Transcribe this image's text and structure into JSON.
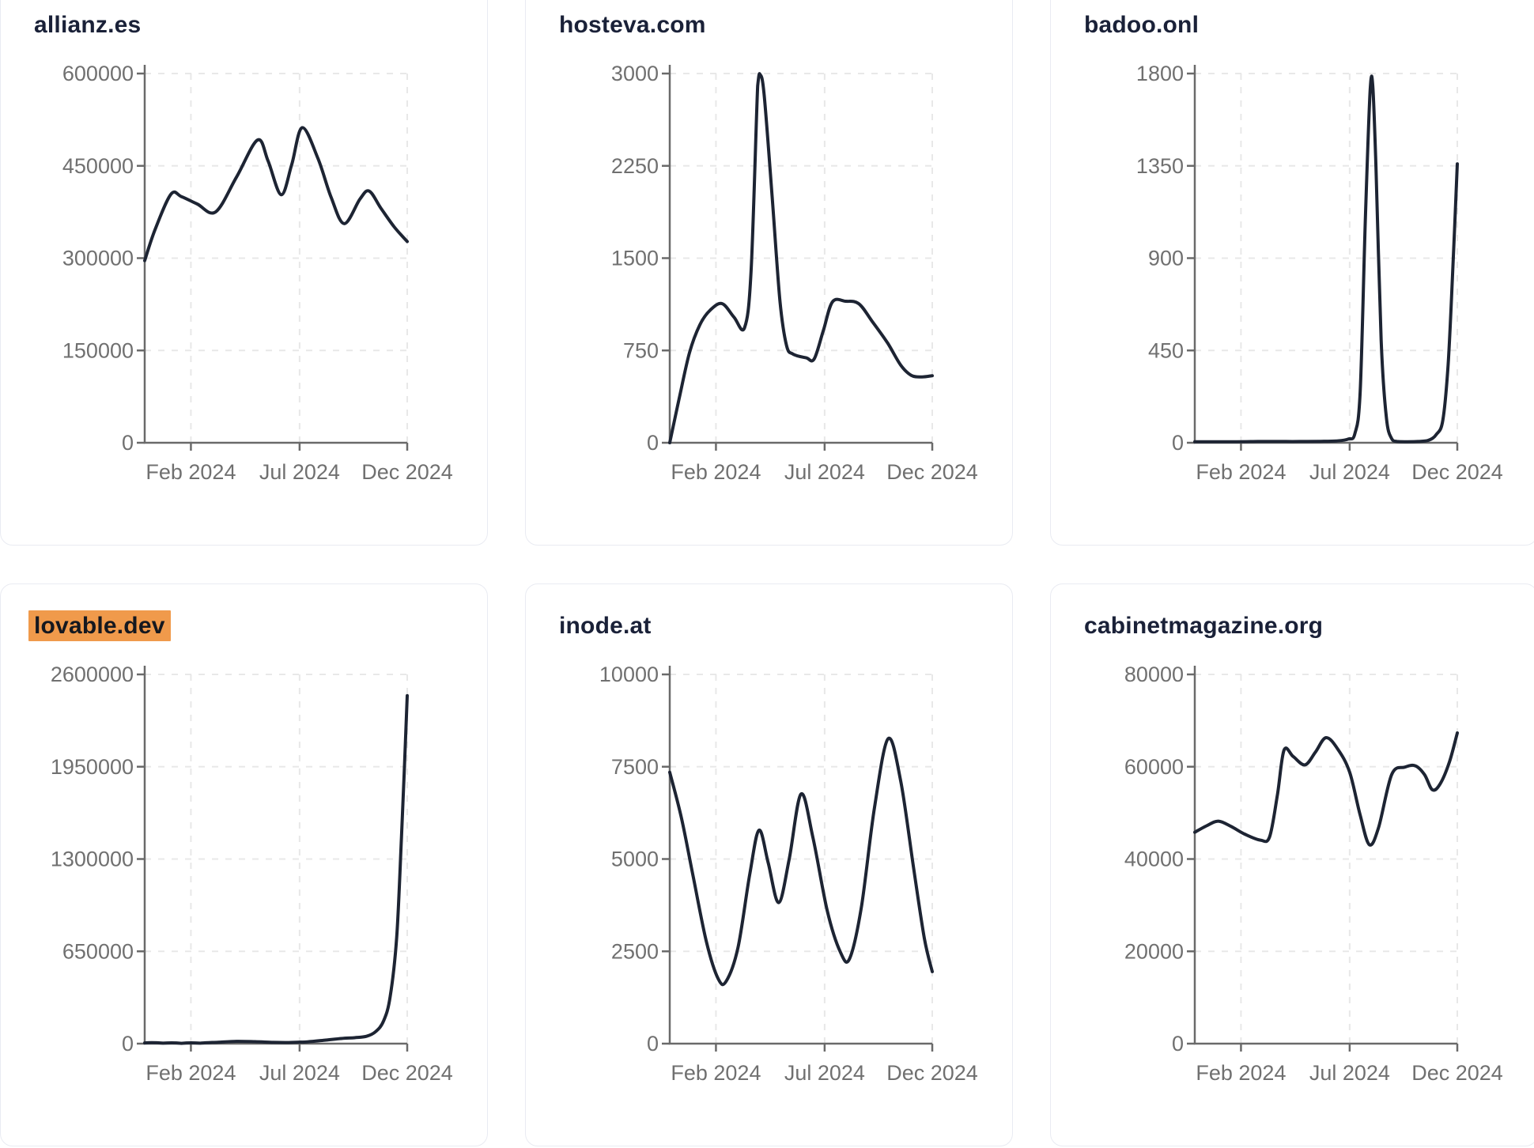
{
  "style": {
    "background": "#ffffff",
    "card_border": "#e9ebf2",
    "title_color": "#1a2138",
    "highlight_color": "#f09a4b",
    "highlight_text_color": "#15181f",
    "axis_color": "#6a6a6a",
    "tick_label_color": "#707070",
    "grid_color": "#e8e8e8",
    "line_color": "#1d2433"
  },
  "chart_data": [
    {
      "type": "line",
      "title": "allianz.es",
      "highlighted": false,
      "xlabel": "",
      "ylabel": "",
      "ylim": [
        0,
        600000
      ],
      "y_ticks": [
        0,
        150000,
        300000,
        450000,
        600000
      ],
      "x_ticks": [
        {
          "label": "Feb 2024",
          "f": 0.176
        },
        {
          "label": "Jul 2024",
          "f": 0.59
        },
        {
          "label": "Dec 2024",
          "f": 1
        }
      ],
      "grid": true,
      "legend": false,
      "points": [
        [
          0,
          296000
        ],
        [
          0.04,
          347000
        ],
        [
          0.1,
          404000
        ],
        [
          0.14,
          400000
        ],
        [
          0.2,
          388000
        ],
        [
          0.27,
          375000
        ],
        [
          0.35,
          432000
        ],
        [
          0.43,
          492000
        ],
        [
          0.47,
          458000
        ],
        [
          0.52,
          403000
        ],
        [
          0.56,
          452000
        ],
        [
          0.6,
          512000
        ],
        [
          0.66,
          462000
        ],
        [
          0.71,
          399000
        ],
        [
          0.76,
          356000
        ],
        [
          0.82,
          396000
        ],
        [
          0.855,
          409000
        ],
        [
          0.9,
          381000
        ],
        [
          0.95,
          351000
        ],
        [
          1,
          327000
        ]
      ]
    },
    {
      "type": "line",
      "title": "hosteva.com",
      "highlighted": false,
      "xlabel": "",
      "ylabel": "",
      "ylim": [
        0,
        3000
      ],
      "y_ticks": [
        0,
        750,
        1500,
        2250,
        3000
      ],
      "x_ticks": [
        {
          "label": "Feb 2024",
          "f": 0.176
        },
        {
          "label": "Jul 2024",
          "f": 0.59
        },
        {
          "label": "Dec 2024",
          "f": 1
        }
      ],
      "grid": true,
      "legend": false,
      "points": [
        [
          0,
          0
        ],
        [
          0.035,
          350
        ],
        [
          0.075,
          730
        ],
        [
          0.115,
          960
        ],
        [
          0.155,
          1080
        ],
        [
          0.2,
          1130
        ],
        [
          0.245,
          1020
        ],
        [
          0.285,
          935
        ],
        [
          0.31,
          1400
        ],
        [
          0.335,
          2900
        ],
        [
          0.345,
          2990
        ],
        [
          0.36,
          2820
        ],
        [
          0.39,
          2000
        ],
        [
          0.42,
          1150
        ],
        [
          0.445,
          790
        ],
        [
          0.47,
          720
        ],
        [
          0.52,
          690
        ],
        [
          0.55,
          680
        ],
        [
          0.585,
          910
        ],
        [
          0.62,
          1145
        ],
        [
          0.67,
          1150
        ],
        [
          0.72,
          1130
        ],
        [
          0.77,
          990
        ],
        [
          0.83,
          810
        ],
        [
          0.88,
          630
        ],
        [
          0.92,
          548
        ],
        [
          0.96,
          535
        ],
        [
          1,
          545
        ]
      ]
    },
    {
      "type": "line",
      "title": "badoo.onl",
      "highlighted": false,
      "xlabel": "",
      "ylabel": "",
      "ylim": [
        0,
        1800
      ],
      "y_ticks": [
        0,
        450,
        900,
        1350,
        1800
      ],
      "x_ticks": [
        {
          "label": "Feb 2024",
          "f": 0.176
        },
        {
          "label": "Jul 2024",
          "f": 0.59
        },
        {
          "label": "Dec 2024",
          "f": 1
        }
      ],
      "grid": true,
      "legend": false,
      "points": [
        [
          0,
          5
        ],
        [
          0.08,
          5
        ],
        [
          0.16,
          5
        ],
        [
          0.24,
          6
        ],
        [
          0.32,
          6
        ],
        [
          0.4,
          6
        ],
        [
          0.48,
          7
        ],
        [
          0.54,
          9
        ],
        [
          0.585,
          18
        ],
        [
          0.61,
          45
        ],
        [
          0.63,
          250
        ],
        [
          0.65,
          1100
        ],
        [
          0.668,
          1720
        ],
        [
          0.678,
          1740
        ],
        [
          0.69,
          1350
        ],
        [
          0.71,
          500
        ],
        [
          0.73,
          120
        ],
        [
          0.75,
          20
        ],
        [
          0.77,
          6
        ],
        [
          0.81,
          5
        ],
        [
          0.85,
          6
        ],
        [
          0.89,
          12
        ],
        [
          0.92,
          40
        ],
        [
          0.945,
          110
        ],
        [
          0.965,
          380
        ],
        [
          0.982,
          820
        ],
        [
          1,
          1360
        ]
      ]
    },
    {
      "type": "line",
      "title": "lovable.dev",
      "highlighted": true,
      "xlabel": "",
      "ylabel": "",
      "ylim": [
        0,
        2600000
      ],
      "y_ticks": [
        0,
        650000,
        1300000,
        1950000,
        2600000
      ],
      "x_ticks": [
        {
          "label": "Feb 2024",
          "f": 0.176
        },
        {
          "label": "Jul 2024",
          "f": 0.59
        },
        {
          "label": "Dec 2024",
          "f": 1
        }
      ],
      "grid": true,
      "legend": false,
      "points": [
        [
          0,
          5000
        ],
        [
          0.07,
          3500
        ],
        [
          0.14,
          2500
        ],
        [
          0.21,
          3500
        ],
        [
          0.28,
          10000
        ],
        [
          0.35,
          16000
        ],
        [
          0.42,
          14000
        ],
        [
          0.49,
          9000
        ],
        [
          0.55,
          8000
        ],
        [
          0.62,
          13000
        ],
        [
          0.69,
          25000
        ],
        [
          0.75,
          36000
        ],
        [
          0.8,
          42000
        ],
        [
          0.845,
          52000
        ],
        [
          0.88,
          85000
        ],
        [
          0.91,
          160000
        ],
        [
          0.935,
          330000
        ],
        [
          0.96,
          750000
        ],
        [
          0.978,
          1450000
        ],
        [
          0.99,
          1980000
        ],
        [
          1,
          2450000
        ]
      ]
    },
    {
      "type": "line",
      "title": "inode.at",
      "highlighted": false,
      "xlabel": "",
      "ylabel": "",
      "ylim": [
        0,
        10000
      ],
      "y_ticks": [
        0,
        2500,
        5000,
        7500,
        10000
      ],
      "x_ticks": [
        {
          "label": "Feb 2024",
          "f": 0.176
        },
        {
          "label": "Jul 2024",
          "f": 0.59
        },
        {
          "label": "Dec 2024",
          "f": 1
        }
      ],
      "grid": true,
      "legend": false,
      "points": [
        [
          0,
          7350
        ],
        [
          0.045,
          6100
        ],
        [
          0.09,
          4500
        ],
        [
          0.14,
          2750
        ],
        [
          0.185,
          1750
        ],
        [
          0.215,
          1690
        ],
        [
          0.26,
          2600
        ],
        [
          0.305,
          4600
        ],
        [
          0.34,
          5780
        ],
        [
          0.375,
          4900
        ],
        [
          0.415,
          3820
        ],
        [
          0.455,
          5000
        ],
        [
          0.5,
          6760
        ],
        [
          0.545,
          5600
        ],
        [
          0.6,
          3600
        ],
        [
          0.65,
          2480
        ],
        [
          0.685,
          2300
        ],
        [
          0.73,
          3700
        ],
        [
          0.78,
          6400
        ],
        [
          0.832,
          8260
        ],
        [
          0.88,
          7100
        ],
        [
          0.93,
          4700
        ],
        [
          0.97,
          2850
        ],
        [
          1,
          1950
        ]
      ]
    },
    {
      "type": "line",
      "title": "cabinetmagazine.org",
      "highlighted": false,
      "xlabel": "",
      "ylabel": "",
      "ylim": [
        0,
        80000
      ],
      "y_ticks": [
        0,
        20000,
        40000,
        60000,
        80000
      ],
      "x_ticks": [
        {
          "label": "Feb 2024",
          "f": 0.176
        },
        {
          "label": "Jul 2024",
          "f": 0.59
        },
        {
          "label": "Dec 2024",
          "f": 1
        }
      ],
      "grid": true,
      "legend": false,
      "points": [
        [
          0,
          45800
        ],
        [
          0.045,
          47200
        ],
        [
          0.09,
          48200
        ],
        [
          0.14,
          47000
        ],
        [
          0.19,
          45400
        ],
        [
          0.25,
          44100
        ],
        [
          0.285,
          44800
        ],
        [
          0.315,
          54000
        ],
        [
          0.34,
          63600
        ],
        [
          0.375,
          62200
        ],
        [
          0.42,
          60400
        ],
        [
          0.46,
          63200
        ],
        [
          0.5,
          66300
        ],
        [
          0.545,
          63800
        ],
        [
          0.59,
          58800
        ],
        [
          0.63,
          49500
        ],
        [
          0.665,
          43100
        ],
        [
          0.7,
          46800
        ],
        [
          0.75,
          58300
        ],
        [
          0.8,
          59900
        ],
        [
          0.84,
          60200
        ],
        [
          0.875,
          58300
        ],
        [
          0.905,
          55000
        ],
        [
          0.935,
          56300
        ],
        [
          0.97,
          61000
        ],
        [
          1,
          67300
        ]
      ]
    }
  ]
}
